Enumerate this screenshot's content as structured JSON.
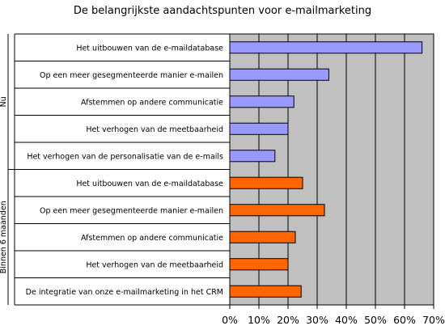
{
  "chart_data": {
    "type": "bar",
    "orientation": "horizontal",
    "title": "De belangrijkste aandachtspunten voor e-mailmarketing",
    "xlim": [
      0,
      70
    ],
    "x_ticks": [
      "0%",
      "10%",
      "20%",
      "30%",
      "40%",
      "50%",
      "60%",
      "70%"
    ],
    "grid": true,
    "plot_background": "#c0c0c0",
    "groups": [
      {
        "label": "Nu",
        "color": "#9999ff",
        "categories": [
          "Het uitbouwen van de e-maildatabase",
          "Op een meer gesegmenteerde manier e-mailen",
          "Afstemmen op andere communicatie",
          "Het verhogen van de meetbaarheid",
          "Het verhogen van de personalisatie van de e-mails"
        ],
        "values": [
          66,
          34,
          22,
          20,
          15.5
        ]
      },
      {
        "label": "Binnen 6 maanden",
        "color": "#ff6600",
        "categories": [
          "Het uitbouwen van de e-maildatabase",
          "Op een meer gesegmenteerde manier e-mailen",
          "Afstemmen op andere communicatie",
          "Het verhogen van de meetbaarheid",
          "De integratie van onze e-mailmarketing in het CRM"
        ],
        "values": [
          25,
          32.5,
          22.5,
          20,
          24.5
        ]
      }
    ]
  }
}
